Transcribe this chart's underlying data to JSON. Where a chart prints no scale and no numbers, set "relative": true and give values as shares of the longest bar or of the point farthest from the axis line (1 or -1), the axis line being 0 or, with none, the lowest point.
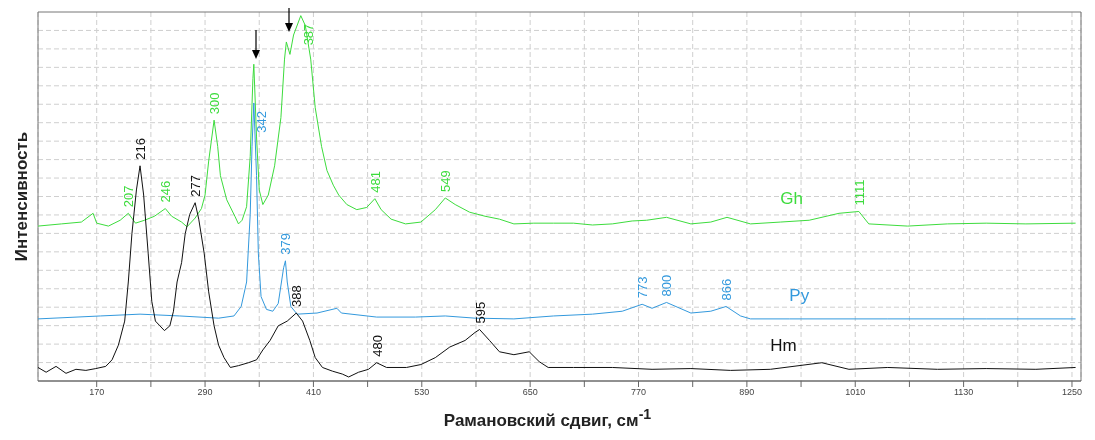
{
  "chart_data": {
    "type": "line",
    "relative": true,
    "xlabel": "Рамановский сдвиг, см$^{-1}$",
    "ylabel": "Интенсивность",
    "grid": true,
    "xlim": [
      105,
      1260
    ],
    "xticks": [
      170,
      {
        "value": 230,
        "label": null
      },
      290,
      {
        "value": 350,
        "label": null
      },
      410,
      {
        "value": 470,
        "label": null
      },
      530,
      {
        "value": 590,
        "label": null
      },
      650,
      {
        "value": 710,
        "label": null
      },
      770,
      {
        "value": 830,
        "label": null
      },
      890,
      {
        "value": 950,
        "label": null
      },
      1010,
      {
        "value": 1070,
        "label": null
      },
      1130,
      {
        "value": 1190,
        "label": null
      },
      1250
    ],
    "series": [
      {
        "name": "Gh",
        "color": "#3ddc3d",
        "x": [
          105,
          131,
          153,
          166,
          170,
          183,
          196,
          205,
          213,
          223,
          234,
          246,
          253,
          264,
          270,
          279,
          286,
          290,
          294,
          300,
          304,
          307,
          314,
          323,
          327,
          331,
          336,
          340,
          343,
          344,
          347,
          350,
          354,
          360,
          367,
          374,
          378,
          380,
          384,
          388,
          396,
          401,
          407,
          412,
          419,
          425,
          432,
          438,
          447,
          458,
          469,
          478,
          485,
          496,
          512,
          529,
          545,
          556,
          567,
          583,
          600,
          616,
          632,
          654,
          676,
          698,
          719,
          741,
          763,
          779,
          801,
          828,
          850,
          868,
          894,
          927,
          959,
          992,
          1014,
          1025,
          1068,
          1112,
          1155,
          1199,
          1254
        ],
        "values": [
          0.424,
          0.43,
          0.435,
          0.459,
          0.432,
          0.424,
          0.44,
          0.459,
          0.432,
          0.44,
          0.451,
          0.472,
          0.451,
          0.435,
          0.422,
          0.446,
          0.472,
          0.509,
          0.602,
          0.714,
          0.642,
          0.562,
          0.496,
          0.451,
          0.43,
          0.44,
          0.477,
          0.615,
          0.828,
          0.867,
          0.668,
          0.523,
          0.483,
          0.509,
          0.589,
          0.721,
          0.881,
          0.928,
          0.894,
          0.947,
          1,
          0.973,
          0.881,
          0.748,
          0.642,
          0.576,
          0.536,
          0.509,
          0.483,
          0.469,
          0.475,
          0.499,
          0.469,
          0.443,
          0.43,
          0.435,
          0.469,
          0.501,
          0.483,
          0.462,
          0.451,
          0.443,
          0.43,
          0.432,
          0.432,
          0.432,
          0.427,
          0.43,
          0.438,
          0.44,
          0.448,
          0.43,
          0.435,
          0.448,
          0.43,
          0.435,
          0.44,
          0.459,
          0.464,
          0.43,
          0.424,
          0.43,
          0.432,
          0.43,
          0.432
        ]
      },
      {
        "name": "Py",
        "color": "#3399dd",
        "x": [
          105,
          174,
          218,
          262,
          305,
          322,
          330,
          336,
          340,
          342,
          344,
          347,
          349,
          352,
          358,
          365,
          371,
          377,
          379,
          381,
          385,
          392,
          414,
          436,
          441,
          480,
          523,
          556,
          589,
          632,
          676,
          719,
          752,
          774,
          785,
          801,
          828,
          850,
          867,
          883,
          894,
          937,
          1046,
          1155,
          1254
        ],
        "values": [
          0.17,
          0.178,
          0.183,
          0.178,
          0.172,
          0.178,
          0.204,
          0.271,
          0.456,
          0.642,
          0.761,
          0.562,
          0.35,
          0.231,
          0.196,
          0.191,
          0.212,
          0.31,
          0.329,
          0.271,
          0.204,
          0.183,
          0.186,
          0.199,
          0.186,
          0.175,
          0.175,
          0.178,
          0.172,
          0.17,
          0.178,
          0.183,
          0.191,
          0.21,
          0.199,
          0.215,
          0.186,
          0.191,
          0.204,
          0.178,
          0.17,
          0.17,
          0.17,
          0.17,
          0.17
        ]
      },
      {
        "name": "Hm",
        "color": "#111111",
        "x": [
          105,
          114,
          125,
          136,
          147,
          158,
          169,
          180,
          187,
          194,
          201,
          205,
          209,
          214,
          218,
          222,
          227,
          231,
          235,
          240,
          245,
          251,
          255,
          259,
          264,
          268,
          273,
          279,
          283,
          289,
          294,
          300,
          305,
          311,
          318,
          327,
          338,
          347,
          354,
          362,
          371,
          381,
          391,
          398,
          406,
          412,
          420,
          431,
          442,
          449,
          460,
          471,
          480,
          491,
          513,
          529,
          545,
          561,
          578,
          589,
          594,
          605,
          616,
          632,
          649,
          660,
          670,
          698,
          741,
          785,
          828,
          872,
          916,
          973,
          1003,
          1046,
          1101,
          1155,
          1210,
          1254
        ],
        "values": [
          0.037,
          0.024,
          0.04,
          0.021,
          0.032,
          0.029,
          0.034,
          0.04,
          0.058,
          0.098,
          0.164,
          0.271,
          0.403,
          0.523,
          0.589,
          0.509,
          0.35,
          0.218,
          0.164,
          0.151,
          0.138,
          0.151,
          0.191,
          0.271,
          0.324,
          0.403,
          0.456,
          0.488,
          0.443,
          0.35,
          0.244,
          0.151,
          0.098,
          0.064,
          0.037,
          0.042,
          0.05,
          0.058,
          0.085,
          0.111,
          0.151,
          0.164,
          0.186,
          0.164,
          0.111,
          0.064,
          0.037,
          0.027,
          0.019,
          0.011,
          0.024,
          0.032,
          0.05,
          0.037,
          0.037,
          0.045,
          0.064,
          0.093,
          0.111,
          0.133,
          0.141,
          0.111,
          0.08,
          0.072,
          0.08,
          0.053,
          0.037,
          0.037,
          0.037,
          0.032,
          0.034,
          0.029,
          0.032,
          0.05,
          0.032,
          0.037,
          0.032,
          0.034,
          0.032,
          0.037
        ]
      }
    ],
    "annotations": [
      {
        "text": "207",
        "x": 205,
        "y": 0.459
      },
      {
        "text": "246",
        "x": 246,
        "y": 0.472
      },
      {
        "text": "300",
        "x": 300,
        "y": 0.714
      },
      {
        "text": "387",
        "x": 396,
        "y": 1
      },
      {
        "text": "481",
        "x": 478,
        "y": 0.499
      },
      {
        "text": "549",
        "x": 556,
        "y": 0.501
      },
      {
        "text": "1111",
        "x": 1014,
        "y": 0.464
      },
      {
        "text": "342",
        "x": 344,
        "y": 0.761
      },
      {
        "text": "379",
        "x": 379,
        "y": 0.329
      },
      {
        "text": "773",
        "x": 774,
        "y": 0.21
      },
      {
        "text": "800",
        "x": 801,
        "y": 0.215
      },
      {
        "text": "866",
        "x": 867,
        "y": 0.204
      },
      {
        "text": "216",
        "x": 218,
        "y": 0.589
      },
      {
        "text": "277",
        "x": 279,
        "y": 0.488
      },
      {
        "text": "388",
        "x": 391,
        "y": 0.186
      },
      {
        "text": "480",
        "x": 480,
        "y": 0.05
      },
      {
        "text": "595",
        "x": 594,
        "y": 0.141
      }
    ]
  }
}
